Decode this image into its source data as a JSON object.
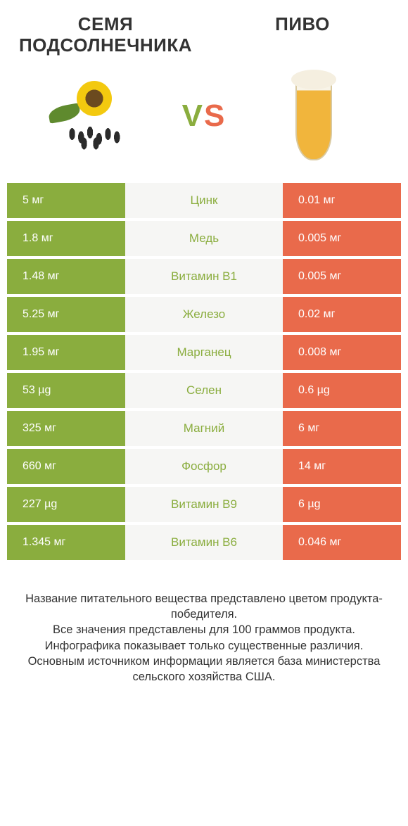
{
  "header": {
    "left_title": "СЕМЯ ПОДСОЛНЕЧНИКА",
    "right_title": "ПИВО",
    "vs_v": "V",
    "vs_s": "S"
  },
  "colors": {
    "left": "#8aad3e",
    "right": "#e96a4b",
    "mid_bg": "#f6f6f4",
    "mid_text_default": "#333333"
  },
  "table": {
    "rows": [
      {
        "left": "5 мг",
        "label": "Цинк",
        "right": "0.01 мг",
        "winner": "left"
      },
      {
        "left": "1.8 мг",
        "label": "Медь",
        "right": "0.005 мг",
        "winner": "left"
      },
      {
        "left": "1.48 мг",
        "label": "Витамин B1",
        "right": "0.005 мг",
        "winner": "left"
      },
      {
        "left": "5.25 мг",
        "label": "Железо",
        "right": "0.02 мг",
        "winner": "left"
      },
      {
        "left": "1.95 мг",
        "label": "Марганец",
        "right": "0.008 мг",
        "winner": "left"
      },
      {
        "left": "53 µg",
        "label": "Селен",
        "right": "0.6 µg",
        "winner": "left"
      },
      {
        "left": "325 мг",
        "label": "Магний",
        "right": "6 мг",
        "winner": "left"
      },
      {
        "left": "660 мг",
        "label": "Фосфор",
        "right": "14 мг",
        "winner": "left"
      },
      {
        "left": "227 µg",
        "label": "Витамин B9",
        "right": "6 µg",
        "winner": "left"
      },
      {
        "left": "1.345 мг",
        "label": "Витамин B6",
        "right": "0.046 мг",
        "winner": "left"
      }
    ]
  },
  "footer": {
    "line1": "Название питательного вещества представлено цветом продукта-победителя.",
    "line2": "Все значения представлены для 100 граммов продукта.",
    "line3": "Инфографика показывает только существенные различия.",
    "line4": "Основным источником информации является база министерства сельского хозяйства США."
  }
}
